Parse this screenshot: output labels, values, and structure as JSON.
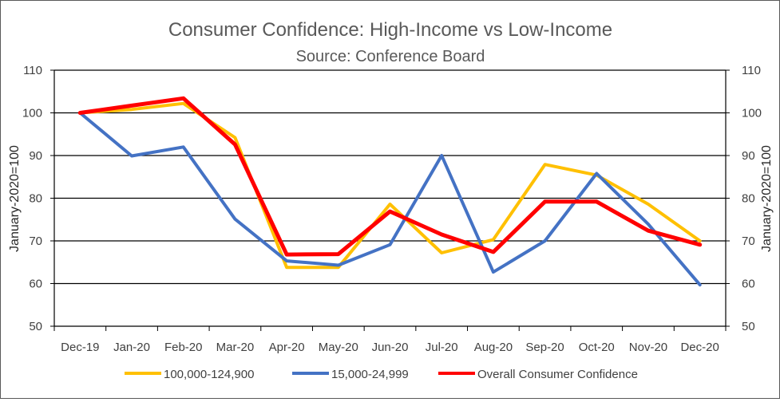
{
  "chart_data": {
    "type": "line",
    "title": "Consumer Confidence: High-Income vs Low-Income",
    "subtitle": "Source: Conference Board",
    "ylabel_left": "January-2020=100",
    "ylabel_right": "January-2020=100",
    "ylim": [
      50,
      110
    ],
    "yticks": [
      50,
      60,
      70,
      80,
      90,
      100,
      110
    ],
    "grid": "horizontal",
    "legend_position": "bottom",
    "categories": [
      "Dec-19",
      "Jan-20",
      "Feb-20",
      "Mar-20",
      "Apr-20",
      "May-20",
      "Jun-20",
      "Jul-20",
      "Aug-20",
      "Sep-20",
      "Oct-20",
      "Nov-20",
      "Dec-20"
    ],
    "series": [
      {
        "name": "100,000-124,900",
        "color": "#FFC000",
        "values": [
          100,
          100.8,
          102.2,
          94.2,
          63.8,
          63.8,
          78.6,
          67.2,
          70.3,
          87.9,
          85.4,
          78.6,
          70.0
        ]
      },
      {
        "name": "15,000-24,999",
        "color": "#4472C4",
        "values": [
          100,
          89.9,
          92.0,
          75.1,
          65.3,
          64.3,
          69.1,
          90.0,
          62.7,
          70.0,
          85.8,
          73.9,
          59.7
        ]
      },
      {
        "name": "Overall Consumer Confidence",
        "color": "#FF0000",
        "values": [
          100,
          101.7,
          103.4,
          92.6,
          66.8,
          66.9,
          76.9,
          71.5,
          67.4,
          79.2,
          79.2,
          72.4,
          69.1
        ]
      }
    ]
  }
}
